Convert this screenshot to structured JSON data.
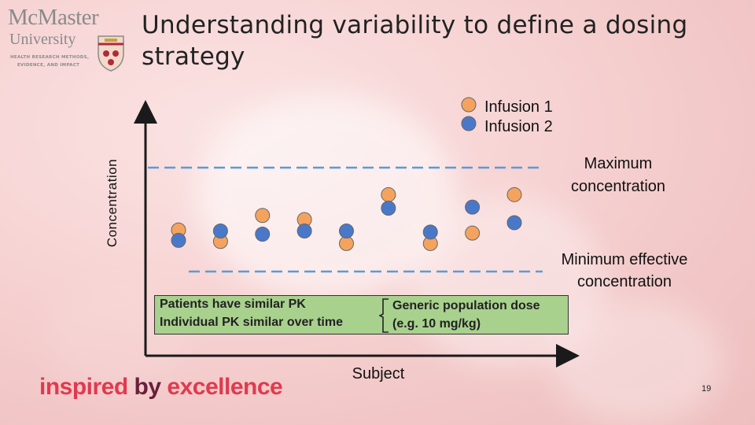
{
  "slide": {
    "title": "Understanding variability to define a dosing strategy",
    "page_number": "19"
  },
  "logo": {
    "name_line1": "McMaster",
    "name_line2": "University",
    "tagline1": "HEALTH RESEARCH METHODS,",
    "tagline2": "EVIDENCE, AND IMPACT"
  },
  "footer": {
    "slogan_part1": "inspired",
    "slogan_part2": "by",
    "slogan_part3": "excellence",
    "colors": {
      "inspired": "#e03a4f",
      "by": "#6a1f3a",
      "excellence": "#e03a4f"
    }
  },
  "chart_data": {
    "type": "scatter",
    "xlabel": "Subject",
    "ylabel": "Concentration",
    "x": [
      1,
      2,
      3,
      4,
      5,
      6,
      7,
      8,
      9
    ],
    "series": [
      {
        "name": "Infusion 1",
        "color": "#f4a35f",
        "values": [
          4.0,
          2.9,
          5.4,
          5.0,
          2.7,
          7.4,
          2.7,
          3.7,
          7.4
        ]
      },
      {
        "name": "Infusion 2",
        "color": "#4a78c9",
        "values": [
          3.0,
          3.9,
          3.6,
          3.9,
          3.9,
          6.1,
          3.8,
          6.2,
          4.7
        ]
      }
    ],
    "reference_lines": [
      {
        "label_line1": "Maximum",
        "label_line2": "concentration",
        "value": 10,
        "color": "#5b9bd5",
        "style": "dashed"
      },
      {
        "label_line1": "Minimum effective",
        "label_line2": "concentration",
        "value": 0,
        "color": "#5b9bd5",
        "style": "dashed"
      }
    ],
    "annotation_box": {
      "left_line1": "Patients have similar PK",
      "left_line2": "Individual PK similar over time",
      "right_line1": "Generic population dose",
      "right_line2": "(e.g. 10 mg/kg)",
      "fill": "#a9d18e"
    },
    "grid": false,
    "legend_position": "top-right"
  }
}
